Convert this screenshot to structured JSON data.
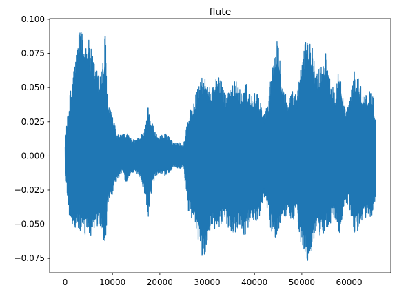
{
  "chart_data": {
    "type": "line",
    "title": "flute",
    "xlabel": "",
    "ylabel": "",
    "xlim": [
      -3280,
      68800
    ],
    "ylim": [
      -0.0855,
      0.1005
    ],
    "x_ticks": [
      0,
      10000,
      20000,
      30000,
      40000,
      50000,
      60000
    ],
    "x_tick_labels": [
      "0",
      "10000",
      "20000",
      "30000",
      "40000",
      "50000",
      "60000"
    ],
    "y_ticks": [
      -0.075,
      -0.05,
      -0.025,
      0.0,
      0.025,
      0.05,
      0.075,
      0.1
    ],
    "y_tick_labels": [
      "−0.075",
      "−0.050",
      "−0.025",
      "0.000",
      "0.025",
      "0.050",
      "0.075",
      "0.100"
    ],
    "grid": false,
    "series": [
      {
        "color": "#1f77b4",
        "sample_count": 65536,
        "envelope": {
          "x": [
            0,
            1000,
            2000,
            3000,
            3500,
            4000,
            5000,
            6000,
            7000,
            8000,
            8500,
            9000,
            10000,
            11000,
            12000,
            13000,
            14000,
            15000,
            16000,
            17000,
            17500,
            18000,
            19000,
            20000,
            21000,
            22000,
            23000,
            24000,
            25000,
            26000,
            27000,
            28000,
            29000,
            29500,
            30000,
            31000,
            32000,
            33000,
            34000,
            35000,
            36000,
            37000,
            38000,
            39000,
            40000,
            41000,
            42000,
            43000,
            44000,
            45000,
            46000,
            47000,
            48000,
            49000,
            50000,
            51000,
            51500,
            52000,
            53000,
            54000,
            55000,
            56000,
            57000,
            58000,
            59000,
            60000,
            61000,
            62000,
            63000,
            64000,
            65000,
            65536
          ],
          "upper": [
            0.012,
            0.045,
            0.07,
            0.09,
            0.092,
            0.089,
            0.085,
            0.072,
            0.06,
            0.07,
            0.094,
            0.038,
            0.03,
            0.016,
            0.015,
            0.018,
            0.012,
            0.012,
            0.015,
            0.022,
            0.037,
            0.03,
            0.018,
            0.014,
            0.017,
            0.014,
            0.009,
            0.01,
            0.008,
            0.03,
            0.038,
            0.05,
            0.058,
            0.059,
            0.05,
            0.052,
            0.06,
            0.055,
            0.045,
            0.056,
            0.056,
            0.048,
            0.055,
            0.047,
            0.046,
            0.044,
            0.03,
            0.042,
            0.078,
            0.09,
            0.052,
            0.042,
            0.048,
            0.044,
            0.075,
            0.085,
            0.092,
            0.085,
            0.062,
            0.066,
            0.078,
            0.058,
            0.045,
            0.07,
            0.036,
            0.038,
            0.062,
            0.058,
            0.045,
            0.047,
            0.048,
            0.03
          ],
          "lower": [
            -0.012,
            -0.048,
            -0.054,
            -0.055,
            -0.058,
            -0.06,
            -0.058,
            -0.06,
            -0.052,
            -0.058,
            -0.07,
            -0.038,
            -0.03,
            -0.017,
            -0.013,
            -0.02,
            -0.012,
            -0.012,
            -0.018,
            -0.03,
            -0.049,
            -0.03,
            -0.015,
            -0.012,
            -0.015,
            -0.012,
            -0.008,
            -0.01,
            -0.008,
            -0.04,
            -0.048,
            -0.062,
            -0.075,
            -0.081,
            -0.062,
            -0.052,
            -0.058,
            -0.05,
            -0.05,
            -0.055,
            -0.058,
            -0.05,
            -0.06,
            -0.048,
            -0.05,
            -0.045,
            -0.03,
            -0.045,
            -0.065,
            -0.055,
            -0.048,
            -0.042,
            -0.048,
            -0.045,
            -0.07,
            -0.075,
            -0.081,
            -0.072,
            -0.058,
            -0.06,
            -0.055,
            -0.05,
            -0.045,
            -0.06,
            -0.035,
            -0.036,
            -0.058,
            -0.055,
            -0.045,
            -0.046,
            -0.045,
            -0.03
          ]
        }
      }
    ]
  }
}
